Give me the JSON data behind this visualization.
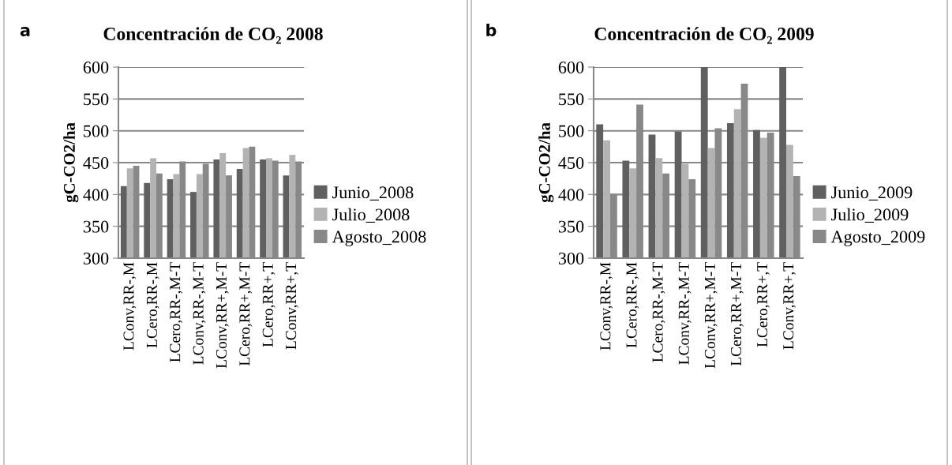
{
  "chart_data": [
    {
      "type": "bar",
      "title": "Concentración de CO₂ 2008",
      "ylabel": "gC-CO2/ha",
      "annotations": [
        "a"
      ],
      "categories": [
        "LConv,RR-,M",
        "LCero,RR-,M",
        "LCero,RR-,M-T",
        "LConv,RR-,M-T",
        "LConv,RR+,M-T",
        "LCero,RR+,M-T",
        "LCero,RR+,T",
        "LConv,RR+,T"
      ],
      "series": [
        {
          "name": "Junio_2008",
          "color": "#606060",
          "values": [
            413,
            418,
            424,
            404,
            455,
            440,
            455,
            430
          ]
        },
        {
          "name": "Julio_2008",
          "color": "#b3b3b3",
          "values": [
            441,
            457,
            432,
            432,
            465,
            473,
            457,
            462
          ]
        },
        {
          "name": "Agosto_2008",
          "color": "#888888",
          "values": [
            445,
            433,
            452,
            448,
            430,
            475,
            453,
            452
          ]
        }
      ],
      "ylim": [
        300,
        600
      ],
      "yticks": [
        300,
        350,
        400,
        450,
        500,
        550,
        600
      ],
      "grid": "y",
      "legend": "right"
    },
    {
      "type": "bar",
      "title": "Concentración de CO₂ 2009",
      "ylabel": "gC-CO2/ha",
      "annotations": [
        "b"
      ],
      "categories": [
        "LConv,RR-,M",
        "LCero,RR-,M",
        "LCero,RR-,M-T",
        "LConv,RR-,M-T",
        "LConv,RR+,M-T",
        "LCero,RR+,M-T",
        "LCero,RR+,T",
        "LConv,RR+,T"
      ],
      "series": [
        {
          "name": "Junio_2009",
          "color": "#606060",
          "values": [
            510,
            453,
            494,
            499,
            600,
            512,
            501,
            600
          ]
        },
        {
          "name": "Julio_2009",
          "color": "#b3b3b3",
          "values": [
            485,
            441,
            457,
            448,
            473,
            534,
            489,
            478
          ]
        },
        {
          "name": "Agosto_2009",
          "color": "#888888",
          "values": [
            401,
            541,
            433,
            424,
            504,
            574,
            497,
            429
          ]
        }
      ],
      "ylim": [
        300,
        600
      ],
      "yticks": [
        300,
        350,
        400,
        450,
        500,
        550,
        600
      ],
      "grid": "y",
      "legend": "right"
    }
  ]
}
